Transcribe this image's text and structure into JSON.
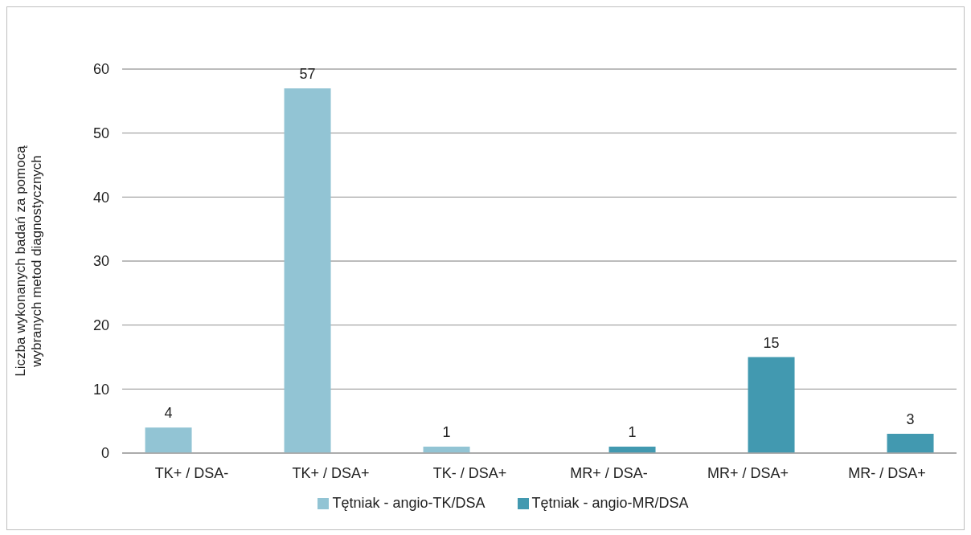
{
  "chart_data": {
    "type": "bar",
    "ylabel": "Liczba wykonanych badań za pomocą\nwybranych metod diagnostycznych",
    "categories": [
      "TK+ / DSA-",
      "TK+ / DSA+",
      "TK- / DSA+",
      "MR+ / DSA-",
      "MR+ / DSA+",
      "MR- / DSA+"
    ],
    "series": [
      {
        "name": "Tętniak - angio-TK/DSA",
        "color": "#92c4d4",
        "values": [
          4,
          57,
          1,
          null,
          null,
          null
        ]
      },
      {
        "name": "Tętniak - angio-MR/DSA",
        "color": "#4299b0",
        "values": [
          null,
          null,
          null,
          1,
          15,
          3
        ]
      }
    ],
    "ylim": [
      0,
      60
    ],
    "yticks": [
      0,
      10,
      20,
      30,
      40,
      50,
      60
    ],
    "grid": "y",
    "legend": "bottom",
    "data_labels": true
  }
}
